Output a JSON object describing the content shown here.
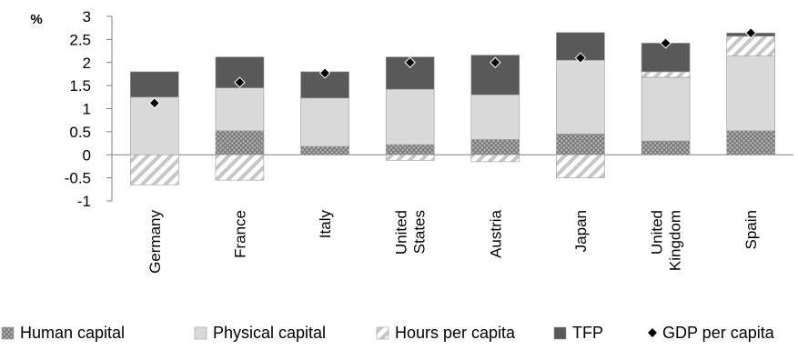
{
  "chart_data": {
    "type": "bar",
    "stacked": true,
    "unit_label": "%",
    "categories": [
      [
        "Germany"
      ],
      [
        "France"
      ],
      [
        "Italy"
      ],
      [
        "United",
        "States"
      ],
      [
        "Austria"
      ],
      [
        "Japan"
      ],
      [
        "United",
        "Kingdom"
      ],
      [
        "Spain"
      ]
    ],
    "y_ticks": [
      "3",
      "2.5",
      "2",
      "1.5",
      "1",
      "0.5",
      "0",
      "-0.5",
      "-1"
    ],
    "ylim": [
      -1,
      3
    ],
    "series": [
      {
        "name": "Human capital",
        "pattern": "crosshatch",
        "color": "#8c8c8c",
        "values": [
          0.0,
          0.52,
          0.18,
          0.22,
          0.33,
          0.45,
          0.3,
          0.52
        ]
      },
      {
        "name": "Physical capital",
        "pattern": "solid",
        "color": "#d9d9d9",
        "values": [
          1.25,
          0.93,
          1.05,
          1.2,
          0.97,
          1.6,
          1.38,
          1.62
        ]
      },
      {
        "name": "Hours per capita",
        "pattern": "diagonal",
        "color": "#bfbfbf",
        "values": [
          -0.65,
          -0.55,
          0.0,
          -0.12,
          -0.15,
          -0.5,
          0.12,
          0.43
        ]
      },
      {
        "name": "TFP",
        "pattern": "solid",
        "color": "#595959",
        "values": [
          0.55,
          0.67,
          0.57,
          0.7,
          0.86,
          0.6,
          0.62,
          0.07
        ]
      }
    ],
    "markers": {
      "name": "GDP per capita",
      "shape": "diamond",
      "color": "#000000",
      "values": [
        1.12,
        1.57,
        1.77,
        2.0,
        2.0,
        2.1,
        2.42,
        2.64
      ]
    },
    "legend_position": "bottom",
    "grid": false
  }
}
